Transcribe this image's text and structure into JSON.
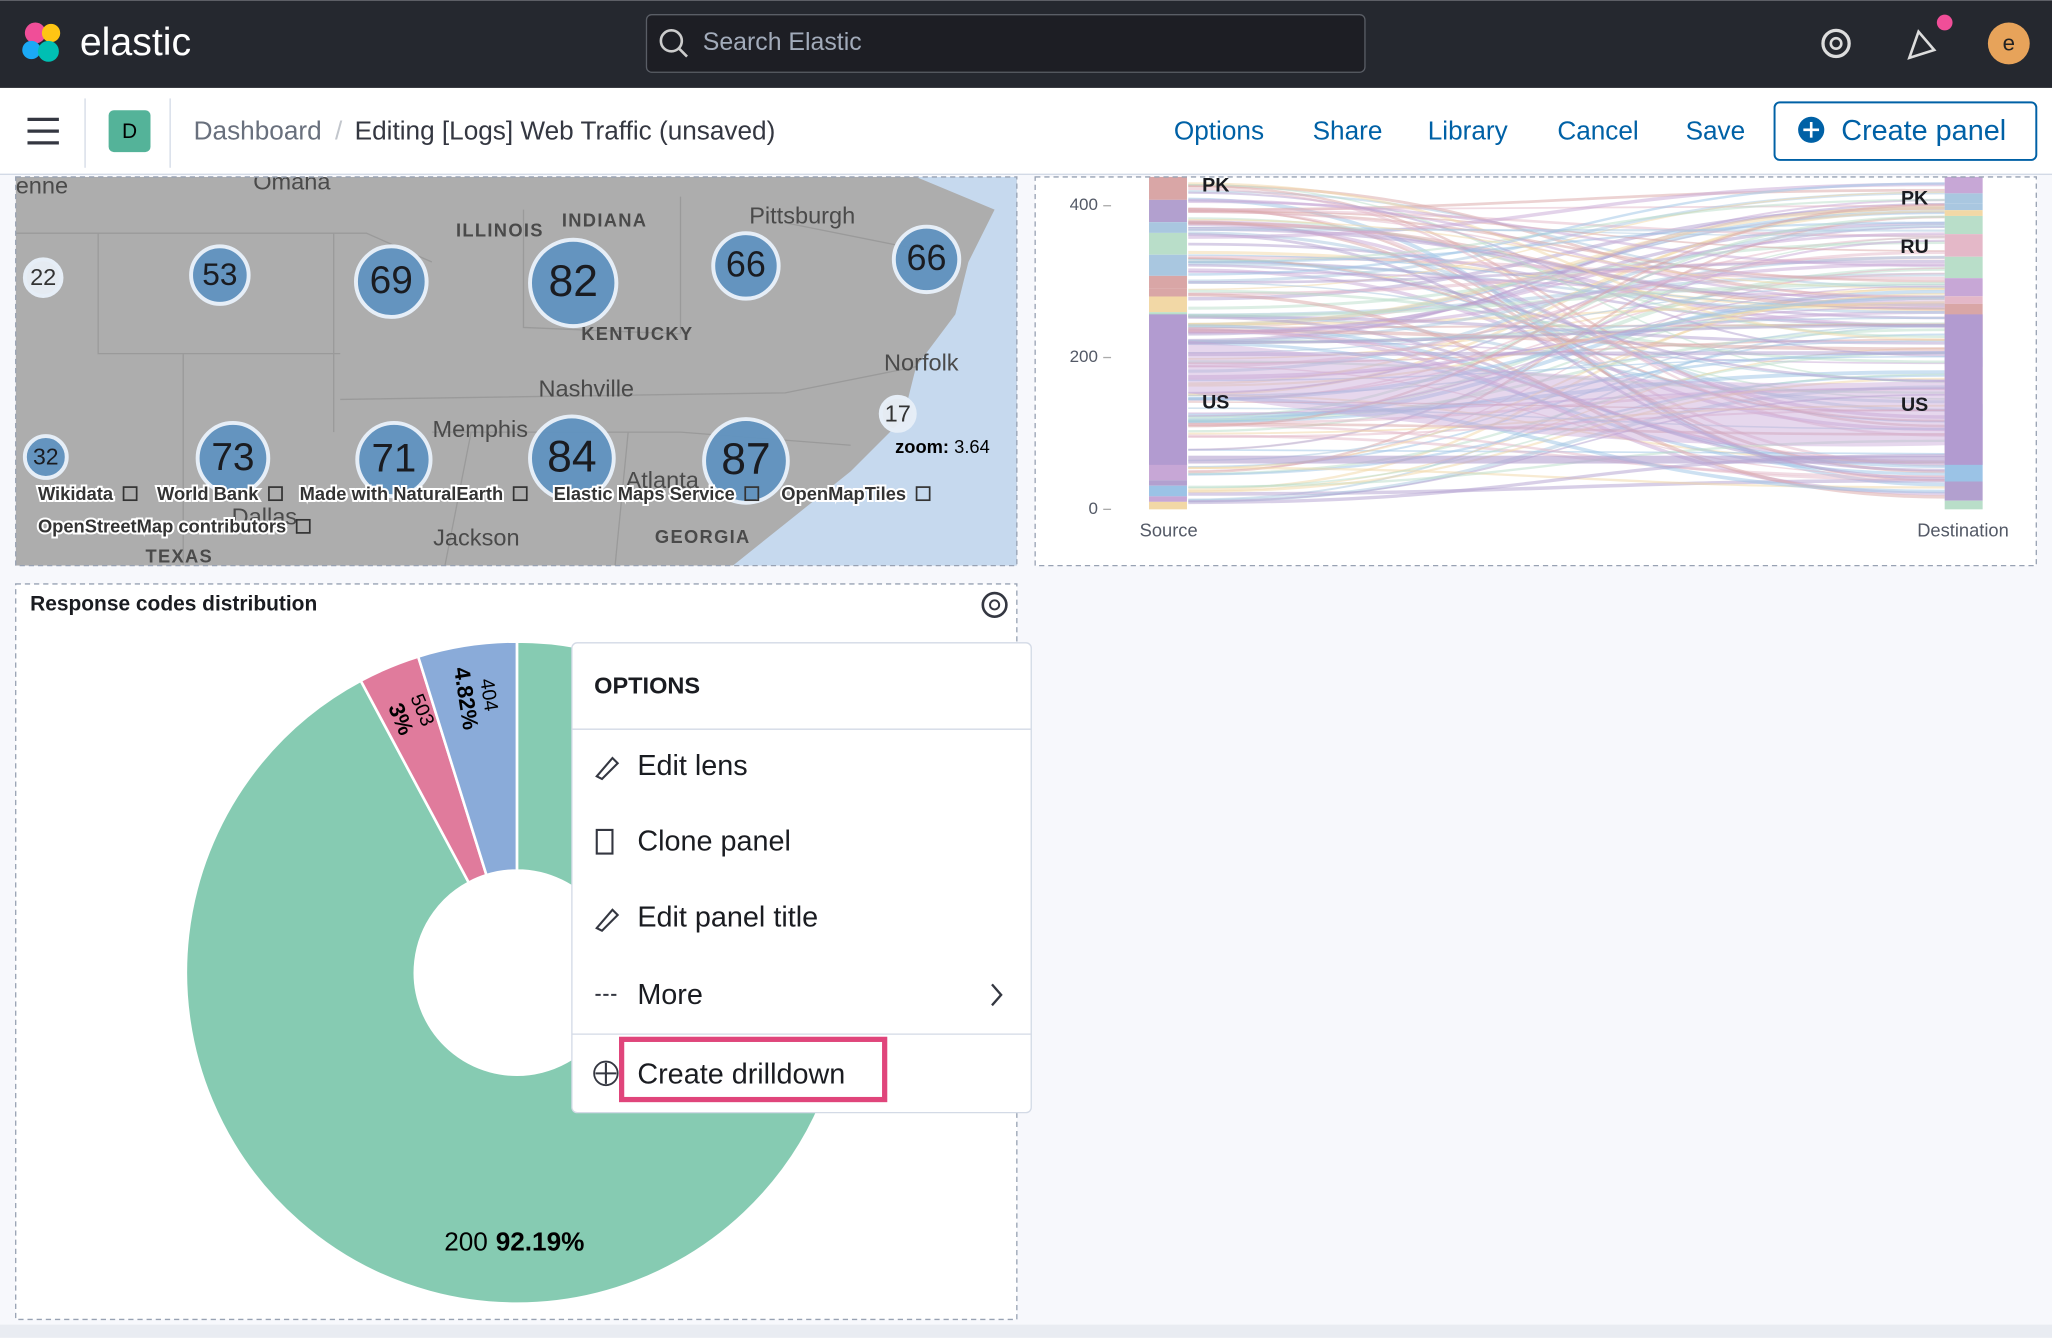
{
  "header": {
    "logo": "elastic",
    "search_placeholder": "Search Elastic",
    "avatar": "e"
  },
  "toolbar": {
    "space": "D",
    "breadcrumbs": [
      "Dashboard",
      "Editing [Logs] Web Traffic (unsaved)"
    ],
    "actions": [
      "Options",
      "Share",
      "Library",
      "Cancel",
      "Save"
    ],
    "create_panel": "Create panel"
  },
  "map_panel": {
    "clusters": [
      22,
      53,
      69,
      82,
      66,
      66,
      32,
      73,
      71,
      84,
      87,
      17
    ],
    "places": [
      "enne",
      "Omaha",
      "ILLINOIS",
      "INDIANA",
      "Pittsburgh",
      "KENTUCKY",
      "Norfolk",
      "Nashville",
      "Memphis",
      "Atlanta",
      "Dallas",
      "Jackson",
      "GEORGIA",
      "TEXAS"
    ],
    "zoom_label": "zoom:",
    "zoom": 3.64,
    "attribution": [
      "Wikidata",
      "World Bank",
      "Made with NaturalEarth",
      "Elastic Maps Service",
      "OpenMapTiles",
      "OpenStreetMap contributors"
    ]
  },
  "sankey_panel": {
    "yticks": [
      0,
      200,
      400
    ],
    "source_labels": [
      "PK",
      "US"
    ],
    "destination_labels": [
      "PK",
      "RU",
      "US"
    ],
    "axis_labels": [
      "Source",
      "Destination"
    ]
  },
  "pie_panel": {
    "title": "Response codes distribution",
    "chart": {
      "type": "pie",
      "categories": [
        "200",
        "503",
        "404"
      ],
      "values": [
        92.19,
        3,
        4.82
      ],
      "value_labels": [
        "92.19%",
        "3%",
        "4.82%"
      ],
      "colors": [
        "#86cbb2",
        "#e07b9c",
        "#8aabd9"
      ]
    }
  },
  "context_menu": {
    "title": "OPTIONS",
    "items": [
      "Edit lens",
      "Clone panel",
      "Edit panel title",
      "More",
      "Create drilldown"
    ]
  }
}
